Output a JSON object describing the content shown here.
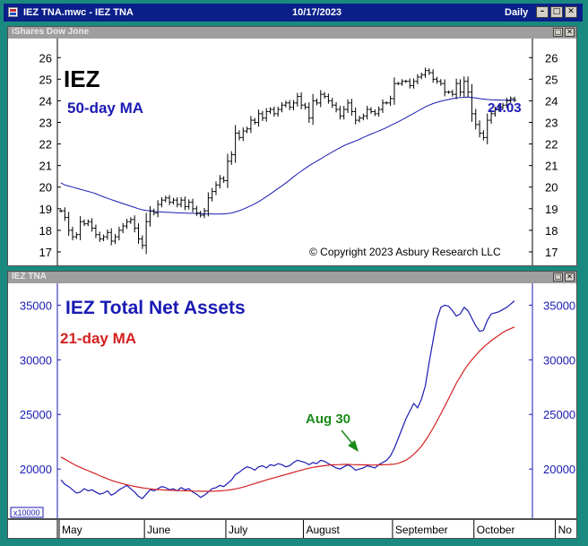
{
  "window": {
    "file_title": "IEZ TNA.mwc - IEZ TNA",
    "date": "10/17/2023",
    "periodicity": "Daily"
  },
  "colors": {
    "frame": "#1a8a80",
    "titlebar": "#0b1f8a",
    "price_ma": "#1a1ab4",
    "tna_line": "#1a1ab4",
    "tna_ma": "#d42020",
    "annotation": "#1a8a1a"
  },
  "x_axis_labels": [
    "May",
    "June",
    "July",
    "August",
    "September",
    "October",
    "No"
  ],
  "chart_data": [
    {
      "type": "bar",
      "pane_label": "iShares Dow Jone",
      "title": "IEZ",
      "subtitle": "50-day MA",
      "last_value_label": "24.03",
      "copyright": "© Copyright 2023 Asbury Research LLC",
      "ylim": [
        16.5,
        26.8
      ],
      "yticks": [
        17,
        18,
        19,
        20,
        21,
        22,
        23,
        24,
        25,
        26
      ],
      "x": [
        "2023-05-01",
        "2023-05-02",
        "2023-05-03",
        "2023-05-04",
        "2023-05-05",
        "2023-05-08",
        "2023-05-09",
        "2023-05-10",
        "2023-05-11",
        "2023-05-12",
        "2023-05-15",
        "2023-05-16",
        "2023-05-17",
        "2023-05-18",
        "2023-05-19",
        "2023-05-22",
        "2023-05-23",
        "2023-05-24",
        "2023-05-25",
        "2023-05-26",
        "2023-05-30",
        "2023-05-31",
        "2023-06-01",
        "2023-06-02",
        "2023-06-05",
        "2023-06-06",
        "2023-06-07",
        "2023-06-08",
        "2023-06-09",
        "2023-06-12",
        "2023-06-13",
        "2023-06-14",
        "2023-06-15",
        "2023-06-16",
        "2023-06-20",
        "2023-06-21",
        "2023-06-22",
        "2023-06-23",
        "2023-06-26",
        "2023-06-27",
        "2023-06-28",
        "2023-06-29",
        "2023-06-30",
        "2023-07-03",
        "2023-07-05",
        "2023-07-06",
        "2023-07-07",
        "2023-07-10",
        "2023-07-11",
        "2023-07-12",
        "2023-07-13",
        "2023-07-14",
        "2023-07-17",
        "2023-07-18",
        "2023-07-19",
        "2023-07-20",
        "2023-07-21",
        "2023-07-24",
        "2023-07-25",
        "2023-07-26",
        "2023-07-27",
        "2023-07-28",
        "2023-07-31",
        "2023-08-01",
        "2023-08-02",
        "2023-08-03",
        "2023-08-04",
        "2023-08-07",
        "2023-08-08",
        "2023-08-09",
        "2023-08-10",
        "2023-08-11",
        "2023-08-14",
        "2023-08-15",
        "2023-08-16",
        "2023-08-17",
        "2023-08-18",
        "2023-08-21",
        "2023-08-22",
        "2023-08-23",
        "2023-08-24",
        "2023-08-25",
        "2023-08-28",
        "2023-08-29",
        "2023-08-30",
        "2023-08-31",
        "2023-09-01",
        "2023-09-05",
        "2023-09-06",
        "2023-09-07",
        "2023-09-08",
        "2023-09-11",
        "2023-09-12",
        "2023-09-13",
        "2023-09-14",
        "2023-09-15",
        "2023-09-18",
        "2023-09-19",
        "2023-09-20",
        "2023-09-21",
        "2023-09-22",
        "2023-09-25",
        "2023-09-26",
        "2023-09-27",
        "2023-09-28",
        "2023-09-29",
        "2023-10-02",
        "2023-10-03",
        "2023-10-04",
        "2023-10-05",
        "2023-10-06",
        "2023-10-09",
        "2023-10-10",
        "2023-10-11",
        "2023-10-12",
        "2023-10-13",
        "2023-10-16",
        "2023-10-17"
      ],
      "close": [
        18.9,
        18.6,
        18.0,
        17.7,
        17.8,
        18.4,
        18.3,
        18.4,
        18.1,
        17.8,
        17.6,
        17.7,
        17.9,
        17.5,
        17.7,
        18.0,
        18.2,
        18.4,
        18.5,
        18.1,
        17.6,
        17.3,
        18.4,
        18.9,
        18.8,
        19.2,
        19.4,
        19.5,
        19.3,
        19.4,
        19.2,
        19.4,
        19.1,
        19.3,
        19.0,
        18.8,
        18.7,
        18.9,
        19.5,
        19.8,
        20.1,
        20.4,
        20.3,
        21.2,
        21.5,
        22.5,
        22.3,
        22.6,
        22.7,
        23.1,
        23.0,
        23.4,
        23.2,
        23.5,
        23.6,
        23.4,
        23.6,
        23.8,
        23.9,
        23.7,
        23.9,
        24.2,
        23.8,
        23.7,
        23.2,
        24.0,
        23.9,
        24.3,
        24.2,
        24.0,
        23.8,
        23.6,
        23.3,
        23.6,
        23.9,
        23.5,
        23.1,
        23.2,
        23.3,
        23.6,
        23.5,
        23.4,
        23.6,
        23.9,
        23.9,
        24.1,
        24.8,
        24.8,
        24.9,
        24.9,
        24.7,
        24.9,
        25.1,
        25.2,
        25.4,
        25.3,
        25.0,
        24.9,
        24.8,
        24.4,
        24.4,
        24.3,
        24.8,
        24.4,
        24.9,
        24.4,
        23.4,
        22.9,
        22.5,
        22.3,
        23.1,
        23.4,
        23.6,
        23.7,
        23.8,
        24.0,
        24.1,
        24.03
      ],
      "ma50": [
        20.2,
        20.1,
        20.05,
        20.0,
        19.95,
        19.9,
        19.85,
        19.8,
        19.75,
        19.7,
        19.62,
        19.55,
        19.48,
        19.42,
        19.36,
        19.3,
        19.24,
        19.18,
        19.12,
        19.06,
        19.0,
        18.95,
        18.92,
        18.9,
        18.88,
        18.86,
        18.85,
        18.84,
        18.83,
        18.82,
        18.81,
        18.8,
        18.8,
        18.79,
        18.79,
        18.78,
        18.77,
        18.76,
        18.76,
        18.76,
        18.75,
        18.76,
        18.76,
        18.78,
        18.8,
        18.85,
        18.91,
        18.98,
        19.06,
        19.14,
        19.23,
        19.33,
        19.44,
        19.56,
        19.68,
        19.81,
        19.94,
        20.06,
        20.19,
        20.33,
        20.48,
        20.61,
        20.74,
        20.87,
        20.99,
        21.1,
        21.2,
        21.31,
        21.42,
        21.52,
        21.63,
        21.73,
        21.83,
        21.92,
        22.0,
        22.07,
        22.14,
        22.21,
        22.3,
        22.38,
        22.46,
        22.53,
        22.6,
        22.68,
        22.76,
        22.85,
        22.94,
        23.03,
        23.12,
        23.22,
        23.32,
        23.42,
        23.52,
        23.62,
        23.72,
        23.8,
        23.87,
        23.93,
        23.98,
        24.02,
        24.06,
        24.1,
        24.13,
        24.15,
        24.16,
        24.17,
        24.15,
        24.13,
        24.1,
        24.08,
        24.06,
        24.05,
        24.04,
        24.04,
        24.03,
        24.03,
        24.03,
        24.03
      ]
    },
    {
      "type": "line",
      "pane_label": "IEZ TNA",
      "title": "IEZ Total Net Assets",
      "subtitle": "21-day MA",
      "annotation": "Aug 30",
      "scale_label": "x10000",
      "ylim": [
        15500,
        37000
      ],
      "yticks": [
        20000,
        25000,
        30000,
        35000
      ],
      "series": [
        {
          "values": [
            19000,
            18600,
            18400,
            18100,
            17800,
            17900,
            18200,
            18000,
            18100,
            17900,
            17700,
            17800,
            18000,
            17600,
            17800,
            18100,
            18300,
            18500,
            18200,
            17900,
            17500,
            17300,
            17700,
            18100,
            18000,
            18200,
            18400,
            18300,
            18100,
            18200,
            18000,
            18300,
            18100,
            18200,
            17900,
            17700,
            17400,
            17600,
            17900,
            18200,
            18300,
            18500,
            18400,
            18700,
            19000,
            19500,
            19700,
            20000,
            20200,
            20100,
            19900,
            20200,
            20300,
            20100,
            20400,
            20300,
            20500,
            20400,
            20200,
            20300,
            20600,
            20800,
            20700,
            20600,
            20400,
            20600,
            20500,
            20800,
            20700,
            20500,
            20300,
            20100,
            20000,
            20200,
            20400,
            20200,
            19900,
            20000,
            20100,
            20300,
            20200,
            20100,
            20400,
            20600,
            20800,
            21200,
            21900,
            22800,
            23700,
            24600,
            25300,
            26000,
            25600,
            26400,
            27600,
            29800,
            31800,
            33700,
            34800,
            35000,
            34900,
            34500,
            34000,
            34200,
            34800,
            34500,
            33800,
            33100,
            32600,
            32700,
            33600,
            34200,
            34300,
            34400,
            34600,
            34800,
            35100,
            35400
          ]
        },
        {
          "values": [
            21100,
            20900,
            20700,
            20500,
            20300,
            20150,
            20000,
            19850,
            19700,
            19550,
            19400,
            19250,
            19100,
            18970,
            18850,
            18750,
            18650,
            18560,
            18480,
            18410,
            18340,
            18280,
            18230,
            18190,
            18150,
            18120,
            18100,
            18080,
            18060,
            18040,
            18030,
            18020,
            18010,
            18000,
            17990,
            17980,
            17970,
            17960,
            17960,
            17970,
            17980,
            18000,
            18030,
            18070,
            18120,
            18180,
            18260,
            18350,
            18450,
            18560,
            18670,
            18780,
            18890,
            19000,
            19100,
            19200,
            19300,
            19400,
            19500,
            19600,
            19700,
            19800,
            19900,
            20000,
            20080,
            20150,
            20210,
            20260,
            20310,
            20350,
            20380,
            20400,
            20410,
            20420,
            20420,
            20410,
            20400,
            20390,
            20380,
            20380,
            20370,
            20370,
            20380,
            20390,
            20400,
            20420,
            20450,
            20520,
            20650,
            20820,
            21050,
            21350,
            21700,
            22100,
            22600,
            23150,
            23750,
            24400,
            25050,
            25750,
            26450,
            27150,
            27850,
            28450,
            29050,
            29550,
            30000,
            30400,
            30800,
            31150,
            31450,
            31750,
            32000,
            32250,
            32500,
            32700,
            32850,
            33000
          ]
        }
      ]
    }
  ]
}
